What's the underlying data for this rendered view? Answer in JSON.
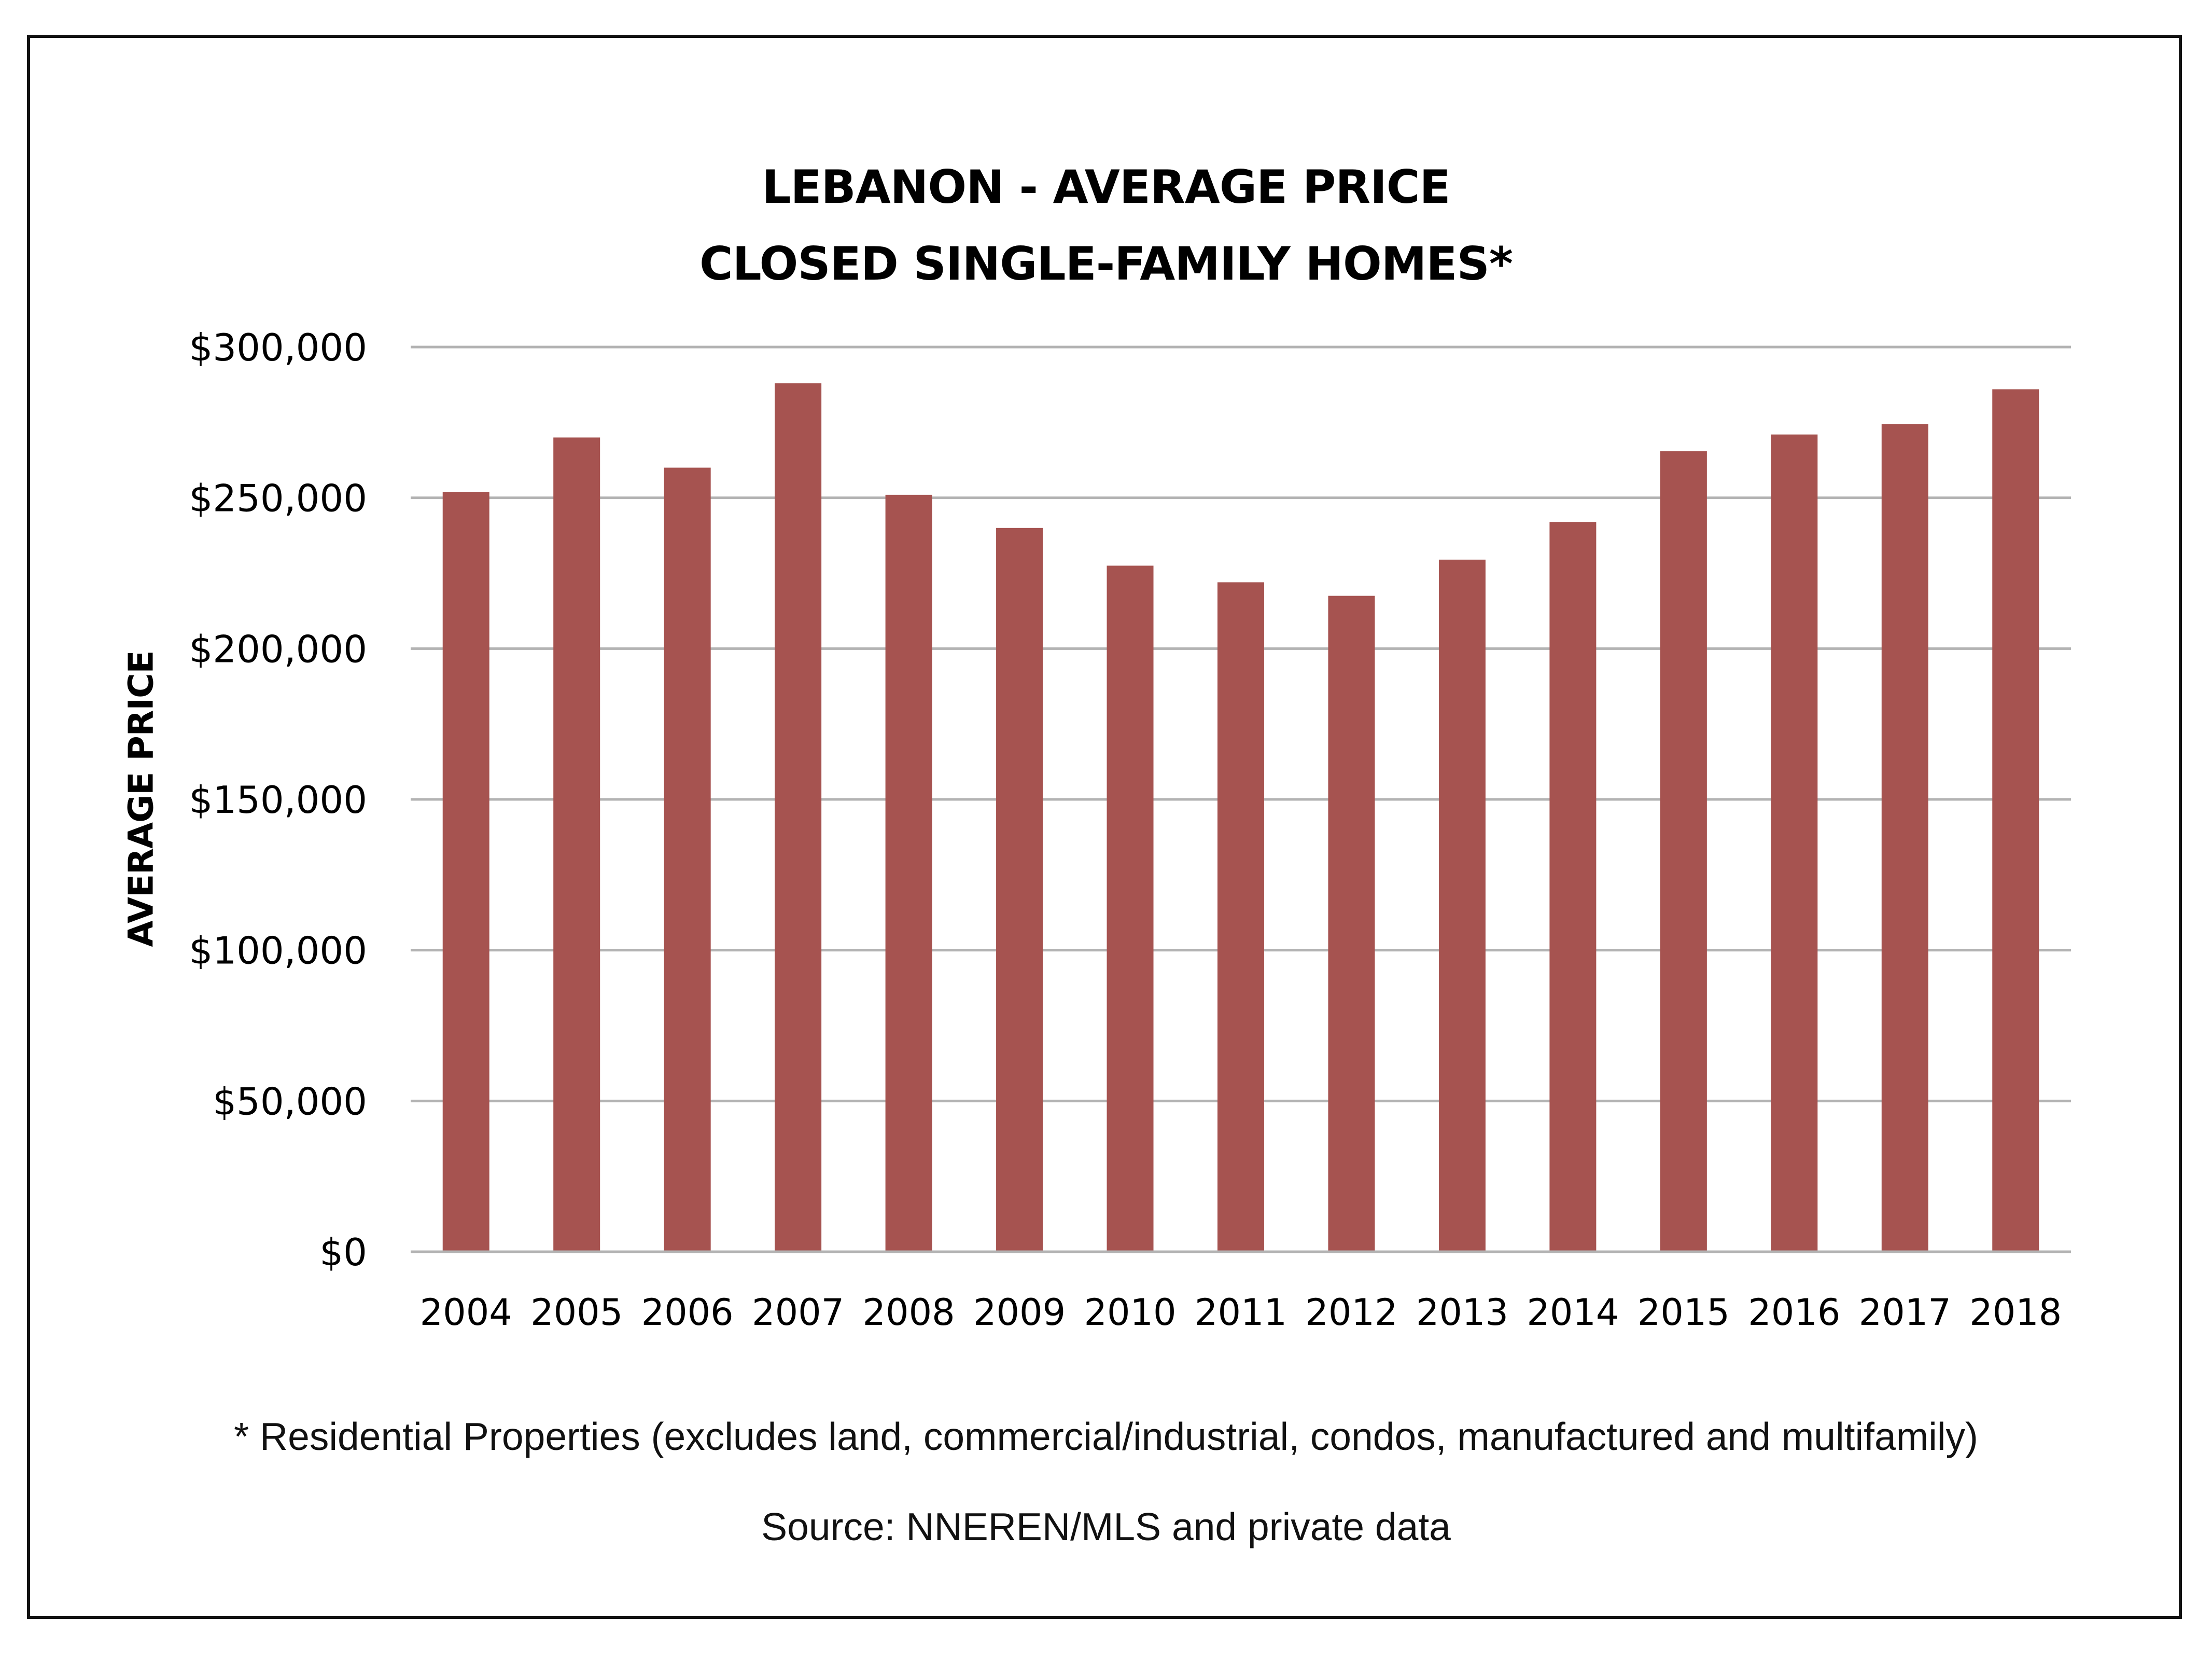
{
  "chart_data": {
    "type": "bar",
    "title": "LEBANON - AVERAGE PRICE",
    "subtitle": "CLOSED SINGLE-FAMILY HOMES*",
    "xlabel": "",
    "ylabel": "AVERAGE PRICE",
    "categories": [
      "2004",
      "2005",
      "2006",
      "2007",
      "2008",
      "2009",
      "2010",
      "2011",
      "2012",
      "2013",
      "2014",
      "2015",
      "2016",
      "2017",
      "2018"
    ],
    "values": [
      252000,
      270000,
      260000,
      288000,
      251000,
      240000,
      227500,
      222000,
      217500,
      229500,
      242000,
      265500,
      271000,
      274500,
      286000
    ],
    "ylim": [
      0,
      300000
    ],
    "yticks": [
      0,
      50000,
      100000,
      150000,
      200000,
      250000,
      300000
    ],
    "ytick_labels": [
      "$0",
      "$50,000",
      "$100,000",
      "$150,000",
      "$200,000",
      "$250,000",
      "$300,000"
    ],
    "grid": true,
    "legend": "none",
    "bar_color": "#a65350",
    "grid_color": "#b3b3b3"
  },
  "footnotes": {
    "note": "* Residential Properties (excludes land, commercial/industrial, condos, manufactured and multifamily)",
    "source": "Source: NNEREN/MLS and private data"
  }
}
